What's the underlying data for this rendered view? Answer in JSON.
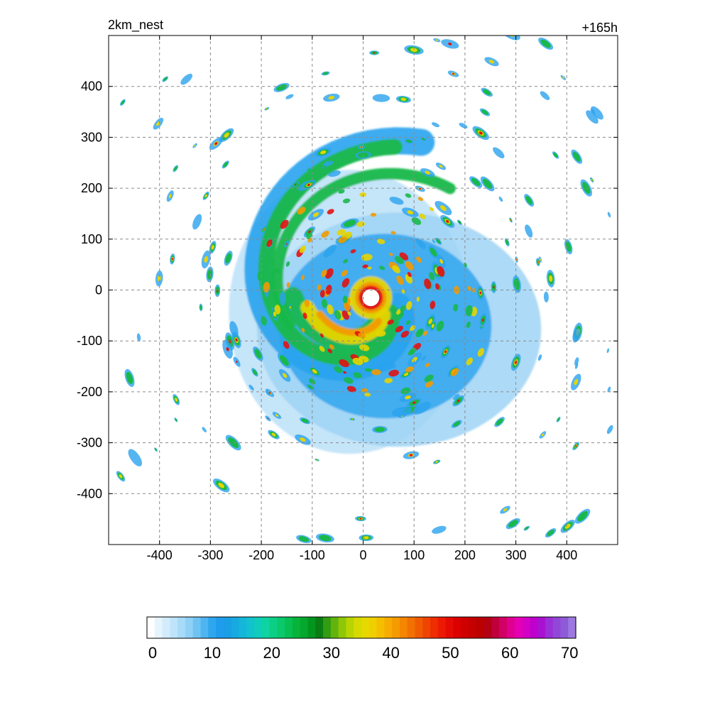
{
  "header": {
    "left_title": "2km_nest",
    "right_title": "+165h"
  },
  "map": {
    "x_ticks": [
      "-400",
      "-300",
      "-200",
      "-100",
      "0",
      "100",
      "200",
      "300",
      "400"
    ],
    "y_ticks": [
      "400",
      "300",
      "200",
      "100",
      "0",
      "-100",
      "-200",
      "-300",
      "-400"
    ],
    "x_values": [
      -400,
      -300,
      -200,
      -100,
      0,
      100,
      200,
      300,
      400
    ],
    "y_values": [
      400,
      300,
      200,
      100,
      0,
      -100,
      -200,
      -300,
      -400
    ],
    "extent_km": [
      -500,
      500
    ],
    "grid": true,
    "eye_center_km": [
      15,
      -15
    ],
    "colors": {
      "weak_blue": "#9fd3f5",
      "mid_blue": "#2aa3ee",
      "green": "#19b84a",
      "dark_green": "#0a8a1e",
      "yellow": "#e5d400",
      "orange": "#f29a00",
      "red": "#e11212",
      "dark_red": "#b30000"
    }
  },
  "colorbar": {
    "tick_labels": [
      "0",
      "10",
      "20",
      "30",
      "40",
      "50",
      "60",
      "70"
    ],
    "tick_values": [
      0,
      10,
      20,
      30,
      40,
      50,
      60,
      70
    ],
    "range": [
      0,
      72
    ],
    "colors": [
      "#ffffff",
      "#e6f4fd",
      "#d2ecfb",
      "#bfe4fa",
      "#a7dbf8",
      "#8fd0f6",
      "#6fc3f3",
      "#4fb5f0",
      "#2fa7ee",
      "#1f9cec",
      "#1a9ee6",
      "#17a9e0",
      "#14b6da",
      "#12c2cf",
      "#10ccbc",
      "#0ed3a2",
      "#0ccf86",
      "#0ac86c",
      "#08bf52",
      "#06b43c",
      "#05a82c",
      "#03961f",
      "#0a7d13",
      "#329c13",
      "#63b30d",
      "#8ec707",
      "#b8d402",
      "#d6da00",
      "#e6d900",
      "#f0cf00",
      "#f5bf00",
      "#f6ac00",
      "#f59a00",
      "#f48600",
      "#f27100",
      "#f05b00",
      "#ef4500",
      "#ee2d00",
      "#ec1a00",
      "#e60a05",
      "#dc0000",
      "#cf0000",
      "#c40000",
      "#bb0000",
      "#b30012",
      "#c0003a",
      "#d00065",
      "#e0008f",
      "#e600b3",
      "#d400c4",
      "#bf00cc",
      "#aa10d2",
      "#9a30d6",
      "#9347d8",
      "#8d5ad8",
      "#9d78de"
    ]
  }
}
